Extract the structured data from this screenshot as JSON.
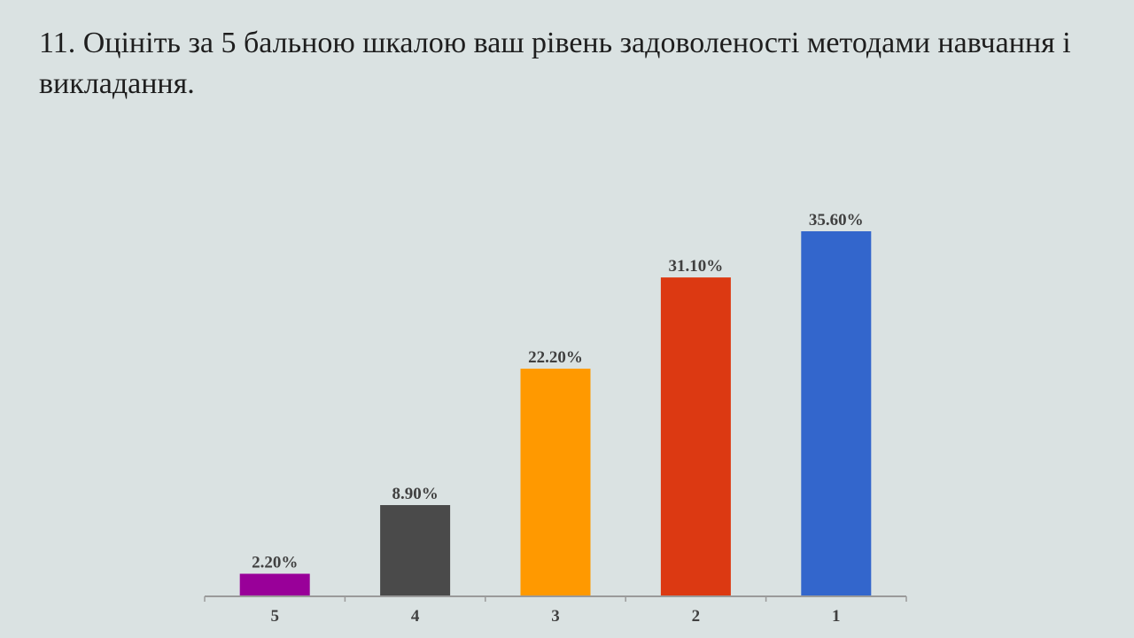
{
  "slide": {
    "title": "11. Оцініть за 5 бальною шкалою ваш рівень задоволеності методами навчання і викладання."
  },
  "chart_data": {
    "type": "bar",
    "categories": [
      "5",
      "4",
      "3",
      "2",
      "1"
    ],
    "values": [
      2.2,
      8.9,
      22.2,
      31.1,
      35.6
    ],
    "value_labels": [
      "2.20%",
      "8.90%",
      "22.20%",
      "31.10%",
      "35.60%"
    ],
    "colors": [
      "#990099",
      "#4a4a4a",
      "#ff9900",
      "#dc3912",
      "#3366cc"
    ],
    "title": "11. Оцініть за 5 бальною шкалою ваш рівень задоволеності методами навчання і викладання.",
    "xlabel": "",
    "ylabel": "",
    "ylim": [
      0,
      40
    ],
    "grid": false,
    "legend": "none"
  }
}
